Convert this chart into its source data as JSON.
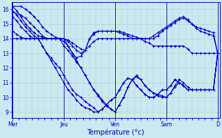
{
  "background_color": "#cce8f0",
  "line_color": "#0000cc",
  "marker": "+",
  "markersize": 3,
  "linewidth": 0.8,
  "xlabel": "Température (°c)",
  "xlabel_fontsize": 7,
  "yticks": [
    9,
    10,
    11,
    12,
    13,
    14,
    15,
    16
  ],
  "ylim": [
    8.6,
    16.5
  ],
  "xtick_labels": [
    "Mer",
    "Jeu",
    "Ven",
    "Sam",
    "D"
  ],
  "xlim": [
    -0.5,
    97
  ],
  "grid_color": "#aaccd8",
  "tick_positions": [
    0,
    24,
    48,
    72,
    96
  ],
  "series": [
    {
      "pts": [
        [
          0,
          16.2
        ],
        [
          2,
          15.9
        ],
        [
          4,
          15.5
        ],
        [
          6,
          15.0
        ],
        [
          8,
          14.7
        ],
        [
          10,
          14.4
        ],
        [
          12,
          14.2
        ],
        [
          14,
          14.1
        ],
        [
          16,
          14.0
        ],
        [
          18,
          14.0
        ],
        [
          20,
          14.0
        ],
        [
          22,
          14.0
        ],
        [
          24,
          14.0
        ],
        [
          26,
          13.5
        ],
        [
          28,
          13.0
        ],
        [
          30,
          12.7
        ],
        [
          32,
          12.8
        ],
        [
          34,
          13.2
        ],
        [
          36,
          14.0
        ],
        [
          38,
          14.4
        ],
        [
          40,
          14.5
        ],
        [
          42,
          14.5
        ],
        [
          44,
          14.5
        ],
        [
          46,
          14.5
        ],
        [
          48,
          14.5
        ],
        [
          50,
          14.5
        ],
        [
          52,
          14.4
        ],
        [
          54,
          14.3
        ],
        [
          56,
          14.2
        ],
        [
          58,
          14.1
        ],
        [
          60,
          14.0
        ],
        [
          62,
          14.0
        ],
        [
          64,
          14.0
        ],
        [
          66,
          14.2
        ],
        [
          68,
          14.4
        ],
        [
          70,
          14.6
        ],
        [
          72,
          14.8
        ],
        [
          74,
          15.0
        ],
        [
          76,
          15.2
        ],
        [
          78,
          15.4
        ],
        [
          80,
          15.5
        ],
        [
          82,
          15.3
        ],
        [
          84,
          15.0
        ],
        [
          86,
          14.8
        ],
        [
          88,
          14.7
        ],
        [
          90,
          14.6
        ],
        [
          92,
          14.5
        ],
        [
          94,
          14.4
        ],
        [
          96,
          13.0
        ]
      ]
    },
    {
      "pts": [
        [
          0,
          15.9
        ],
        [
          2,
          15.6
        ],
        [
          4,
          15.2
        ],
        [
          6,
          14.8
        ],
        [
          8,
          14.5
        ],
        [
          10,
          14.2
        ],
        [
          12,
          14.0
        ],
        [
          14,
          14.0
        ],
        [
          16,
          14.0
        ],
        [
          18,
          14.0
        ],
        [
          20,
          14.0
        ],
        [
          22,
          14.0
        ],
        [
          24,
          14.0
        ],
        [
          26,
          13.8
        ],
        [
          28,
          13.5
        ],
        [
          30,
          13.2
        ],
        [
          32,
          13.0
        ],
        [
          34,
          13.2
        ],
        [
          36,
          14.0
        ],
        [
          38,
          14.3
        ],
        [
          40,
          14.5
        ],
        [
          42,
          14.5
        ],
        [
          44,
          14.5
        ],
        [
          46,
          14.5
        ],
        [
          48,
          14.5
        ],
        [
          50,
          14.4
        ],
        [
          52,
          14.3
        ],
        [
          54,
          14.2
        ],
        [
          56,
          14.0
        ],
        [
          58,
          14.0
        ],
        [
          60,
          14.0
        ],
        [
          62,
          14.0
        ],
        [
          64,
          14.0
        ],
        [
          66,
          14.0
        ],
        [
          68,
          14.2
        ],
        [
          70,
          14.5
        ],
        [
          72,
          14.7
        ],
        [
          74,
          14.9
        ],
        [
          76,
          15.1
        ],
        [
          78,
          15.3
        ],
        [
          80,
          15.4
        ],
        [
          82,
          15.2
        ],
        [
          84,
          15.0
        ],
        [
          86,
          14.7
        ],
        [
          88,
          14.5
        ],
        [
          90,
          14.4
        ],
        [
          92,
          14.3
        ],
        [
          94,
          14.2
        ],
        [
          96,
          13.0
        ]
      ]
    },
    {
      "pts": [
        [
          0,
          15.5
        ],
        [
          2,
          15.2
        ],
        [
          4,
          14.8
        ],
        [
          6,
          14.5
        ],
        [
          8,
          14.2
        ],
        [
          10,
          14.0
        ],
        [
          12,
          14.0
        ],
        [
          14,
          14.0
        ],
        [
          16,
          14.0
        ],
        [
          18,
          14.0
        ],
        [
          20,
          14.0
        ],
        [
          22,
          14.0
        ],
        [
          24,
          14.0
        ],
        [
          26,
          13.9
        ],
        [
          28,
          13.7
        ],
        [
          30,
          13.5
        ],
        [
          32,
          13.3
        ],
        [
          34,
          13.2
        ],
        [
          36,
          13.5
        ],
        [
          38,
          13.8
        ],
        [
          40,
          14.0
        ],
        [
          42,
          14.0
        ],
        [
          44,
          14.0
        ],
        [
          46,
          14.0
        ],
        [
          48,
          14.0
        ],
        [
          50,
          14.0
        ],
        [
          52,
          14.0
        ],
        [
          54,
          14.0
        ],
        [
          56,
          14.0
        ],
        [
          58,
          14.0
        ],
        [
          60,
          14.0
        ],
        [
          62,
          13.8
        ],
        [
          64,
          13.7
        ],
        [
          66,
          13.5
        ],
        [
          68,
          13.5
        ],
        [
          70,
          13.5
        ],
        [
          72,
          13.5
        ],
        [
          74,
          13.5
        ],
        [
          76,
          13.5
        ],
        [
          78,
          13.5
        ],
        [
          80,
          13.5
        ],
        [
          82,
          13.3
        ],
        [
          84,
          13.0
        ],
        [
          86,
          13.0
        ],
        [
          88,
          13.0
        ],
        [
          90,
          13.0
        ],
        [
          92,
          13.0
        ],
        [
          94,
          13.0
        ],
        [
          96,
          13.0
        ]
      ]
    },
    {
      "pts": [
        [
          0,
          16.2
        ],
        [
          4,
          16.2
        ],
        [
          6,
          16.0
        ],
        [
          8,
          15.8
        ],
        [
          10,
          15.5
        ],
        [
          12,
          15.2
        ],
        [
          14,
          14.8
        ],
        [
          16,
          14.5
        ],
        [
          18,
          14.3
        ],
        [
          20,
          14.1
        ],
        [
          22,
          14.0
        ],
        [
          24,
          13.5
        ],
        [
          26,
          13.2
        ],
        [
          28,
          12.8
        ],
        [
          30,
          12.4
        ],
        [
          32,
          12.0
        ],
        [
          34,
          11.5
        ],
        [
          36,
          11.0
        ],
        [
          38,
          10.5
        ],
        [
          40,
          10.1
        ],
        [
          42,
          9.7
        ],
        [
          44,
          9.4
        ],
        [
          46,
          9.2
        ],
        [
          48,
          9.0
        ],
        [
          50,
          9.5
        ],
        [
          52,
          10.0
        ],
        [
          54,
          10.7
        ],
        [
          56,
          11.2
        ],
        [
          58,
          11.5
        ],
        [
          60,
          11.2
        ],
        [
          62,
          10.8
        ],
        [
          64,
          10.5
        ],
        [
          66,
          10.3
        ],
        [
          68,
          10.2
        ],
        [
          70,
          10.1
        ],
        [
          72,
          10.0
        ],
        [
          74,
          10.3
        ],
        [
          76,
          10.8
        ],
        [
          78,
          11.2
        ],
        [
          80,
          11.0
        ],
        [
          82,
          10.7
        ],
        [
          84,
          10.5
        ],
        [
          86,
          10.5
        ],
        [
          88,
          10.5
        ],
        [
          90,
          10.5
        ],
        [
          92,
          10.5
        ],
        [
          94,
          10.5
        ],
        [
          96,
          13.0
        ]
      ]
    },
    {
      "pts": [
        [
          0,
          15.8
        ],
        [
          4,
          15.6
        ],
        [
          6,
          15.4
        ],
        [
          8,
          15.1
        ],
        [
          10,
          14.8
        ],
        [
          12,
          14.5
        ],
        [
          14,
          14.2
        ],
        [
          16,
          14.0
        ],
        [
          18,
          14.0
        ],
        [
          20,
          14.0
        ],
        [
          22,
          14.0
        ],
        [
          24,
          13.8
        ],
        [
          26,
          13.5
        ],
        [
          28,
          13.0
        ],
        [
          30,
          12.5
        ],
        [
          32,
          12.0
        ],
        [
          34,
          11.5
        ],
        [
          36,
          11.0
        ],
        [
          38,
          10.5
        ],
        [
          40,
          10.2
        ],
        [
          42,
          9.8
        ],
        [
          44,
          9.5
        ],
        [
          46,
          9.2
        ],
        [
          48,
          9.0
        ],
        [
          50,
          9.5
        ],
        [
          52,
          10.0
        ],
        [
          54,
          10.7
        ],
        [
          56,
          11.2
        ],
        [
          58,
          11.4
        ],
        [
          60,
          11.2
        ],
        [
          62,
          10.8
        ],
        [
          64,
          10.5
        ],
        [
          66,
          10.3
        ],
        [
          68,
          10.1
        ],
        [
          70,
          10.0
        ],
        [
          72,
          10.0
        ],
        [
          74,
          10.3
        ],
        [
          76,
          10.7
        ],
        [
          78,
          11.0
        ],
        [
          80,
          10.8
        ],
        [
          82,
          10.5
        ],
        [
          84,
          10.5
        ],
        [
          86,
          10.5
        ],
        [
          88,
          10.5
        ],
        [
          90,
          10.5
        ],
        [
          92,
          10.5
        ],
        [
          94,
          10.5
        ],
        [
          96,
          13.0
        ]
      ]
    },
    {
      "pts": [
        [
          0,
          14.5
        ],
        [
          2,
          14.3
        ],
        [
          4,
          14.1
        ],
        [
          6,
          14.0
        ],
        [
          8,
          14.0
        ],
        [
          10,
          14.0
        ],
        [
          12,
          14.0
        ],
        [
          14,
          13.5
        ],
        [
          16,
          13.0
        ],
        [
          18,
          12.5
        ],
        [
          20,
          12.0
        ],
        [
          22,
          11.5
        ],
        [
          24,
          11.0
        ],
        [
          26,
          10.5
        ],
        [
          28,
          10.2
        ],
        [
          30,
          9.8
        ],
        [
          32,
          9.5
        ],
        [
          34,
          9.3
        ],
        [
          36,
          9.2
        ],
        [
          38,
          9.0
        ],
        [
          40,
          9.0
        ],
        [
          42,
          9.2
        ],
        [
          44,
          9.5
        ],
        [
          46,
          9.8
        ],
        [
          48,
          10.0
        ],
        [
          50,
          10.5
        ],
        [
          52,
          11.0
        ],
        [
          54,
          11.3
        ],
        [
          56,
          11.2
        ],
        [
          58,
          10.8
        ],
        [
          60,
          10.5
        ],
        [
          62,
          10.2
        ],
        [
          64,
          10.0
        ],
        [
          66,
          10.0
        ],
        [
          68,
          10.2
        ],
        [
          70,
          10.5
        ],
        [
          72,
          10.5
        ],
        [
          74,
          10.8
        ],
        [
          76,
          11.2
        ],
        [
          78,
          11.0
        ],
        [
          80,
          10.8
        ],
        [
          82,
          10.5
        ],
        [
          84,
          10.5
        ],
        [
          86,
          10.5
        ],
        [
          88,
          10.5
        ],
        [
          90,
          10.5
        ],
        [
          92,
          10.5
        ],
        [
          94,
          10.5
        ],
        [
          96,
          13.0
        ]
      ]
    },
    {
      "pts": [
        [
          0,
          14.0
        ],
        [
          2,
          14.0
        ],
        [
          4,
          14.0
        ],
        [
          6,
          14.0
        ],
        [
          8,
          14.0
        ],
        [
          10,
          14.0
        ],
        [
          12,
          14.0
        ],
        [
          14,
          13.5
        ],
        [
          16,
          13.0
        ],
        [
          18,
          12.7
        ],
        [
          20,
          12.3
        ],
        [
          22,
          12.0
        ],
        [
          24,
          11.5
        ],
        [
          26,
          11.0
        ],
        [
          28,
          10.5
        ],
        [
          30,
          10.2
        ],
        [
          32,
          10.0
        ],
        [
          34,
          9.7
        ],
        [
          36,
          9.5
        ],
        [
          38,
          9.3
        ],
        [
          40,
          9.0
        ],
        [
          42,
          9.2
        ],
        [
          44,
          9.5
        ],
        [
          46,
          9.8
        ],
        [
          48,
          10.0
        ],
        [
          50,
          10.5
        ],
        [
          52,
          11.0
        ],
        [
          54,
          11.3
        ],
        [
          56,
          11.2
        ],
        [
          58,
          10.8
        ],
        [
          60,
          10.5
        ],
        [
          62,
          10.2
        ],
        [
          64,
          10.0
        ],
        [
          66,
          10.0
        ],
        [
          68,
          10.2
        ],
        [
          70,
          10.5
        ],
        [
          72,
          10.5
        ],
        [
          74,
          10.8
        ],
        [
          76,
          11.2
        ],
        [
          78,
          11.0
        ],
        [
          80,
          10.8
        ],
        [
          82,
          10.5
        ],
        [
          84,
          10.5
        ],
        [
          86,
          10.5
        ],
        [
          88,
          10.5
        ],
        [
          90,
          10.5
        ],
        [
          92,
          10.5
        ],
        [
          94,
          10.5
        ],
        [
          96,
          13.0
        ]
      ]
    }
  ]
}
